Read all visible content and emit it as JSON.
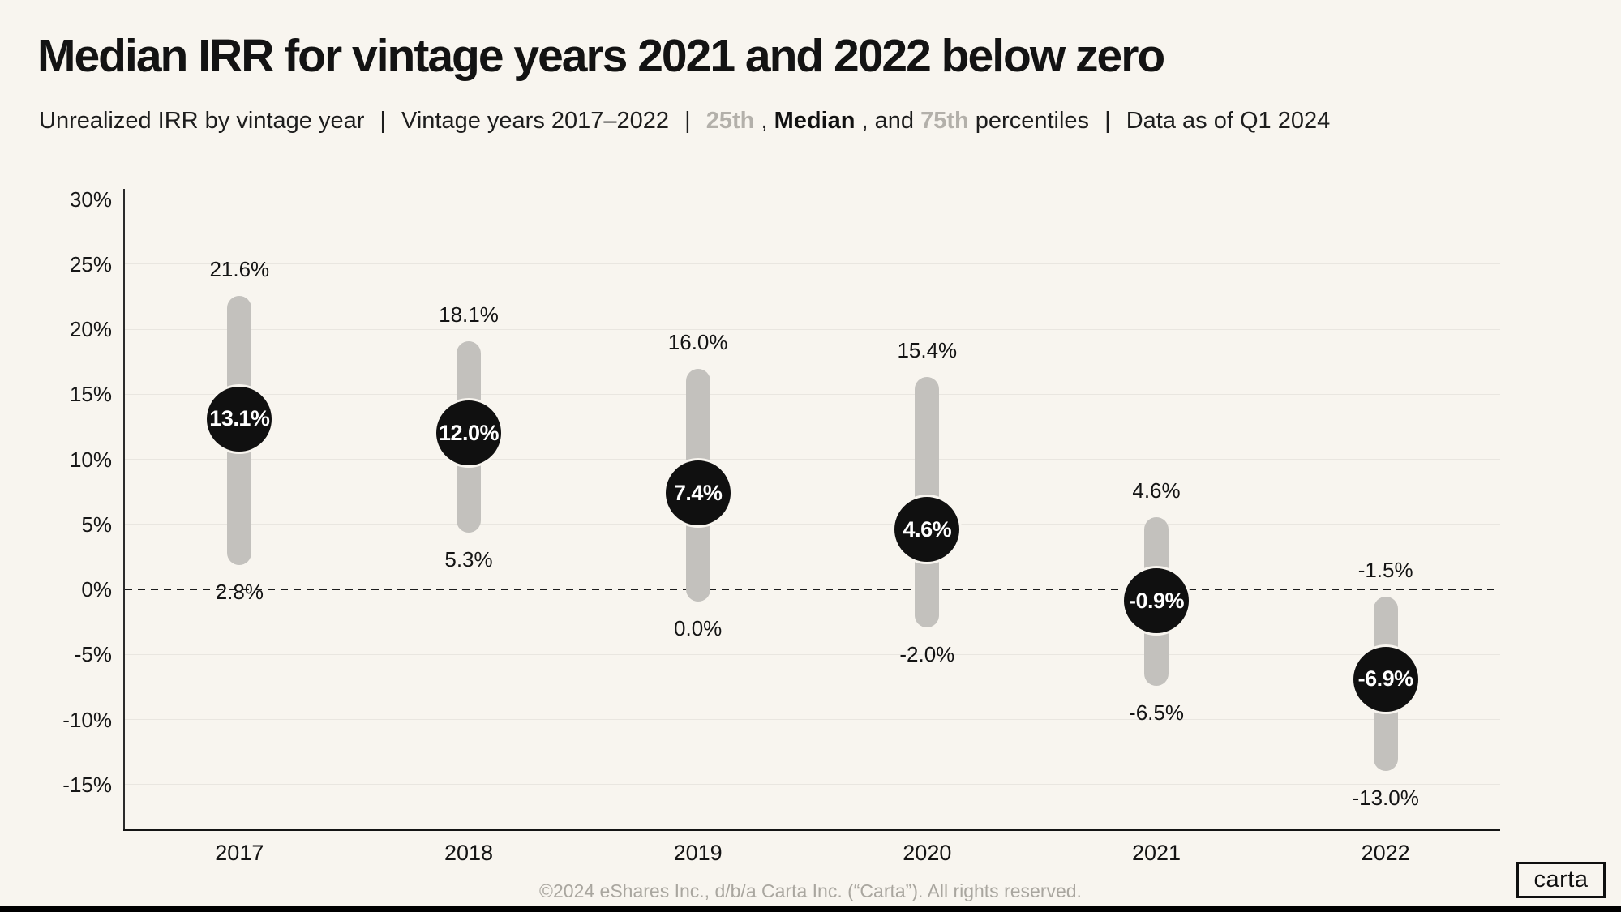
{
  "header": {
    "title": "Median IRR for vintage years 2021 and 2022 below zero",
    "subtitle": {
      "seg1": "Unrealized IRR by vintage year",
      "sep": "|",
      "seg2": "Vintage years 2017–2022",
      "p25": "25th",
      "comma": ", ",
      "median": "Median",
      "and": ", and ",
      "p75": "75th",
      "percentiles": " percentiles",
      "seg4": "Data as of Q1 2024"
    }
  },
  "footer": {
    "copyright": "©2024 eShares Inc., d/b/a Carta Inc. (“Carta”). All rights reserved.",
    "logo": "carta"
  },
  "colors": {
    "background": "#f8f5ef",
    "range_bar": "#c3c1bd",
    "median_dot": "#101010",
    "percentile_gray": "#b3b0aa",
    "gridline": "#e9e6e0",
    "footer_gray": "#a9a69f"
  },
  "chart_data": {
    "type": "dumbbell-range",
    "title": "Median IRR for vintage years 2021 and 2022 below zero",
    "categories": [
      "2017",
      "2018",
      "2019",
      "2020",
      "2021",
      "2022"
    ],
    "series": [
      {
        "name": "75th percentile",
        "values": [
          21.6,
          18.1,
          16.0,
          15.4,
          4.6,
          -1.5
        ]
      },
      {
        "name": "Median",
        "values": [
          13.1,
          12.0,
          7.4,
          4.6,
          -0.9,
          -6.9
        ]
      },
      {
        "name": "25th percentile",
        "values": [
          2.8,
          5.3,
          0.0,
          -2.0,
          -6.5,
          -13.0
        ]
      }
    ],
    "y_ticks": [
      30,
      25,
      20,
      15,
      10,
      5,
      0,
      -5,
      -10,
      -15
    ],
    "y_tick_suffix": "%",
    "ylim": [
      -18.5,
      31
    ],
    "xlabel": "",
    "ylabel": "",
    "zero_line": "dashed",
    "grid": true,
    "legend": "none",
    "value_label_format": "one-decimal-percent"
  }
}
